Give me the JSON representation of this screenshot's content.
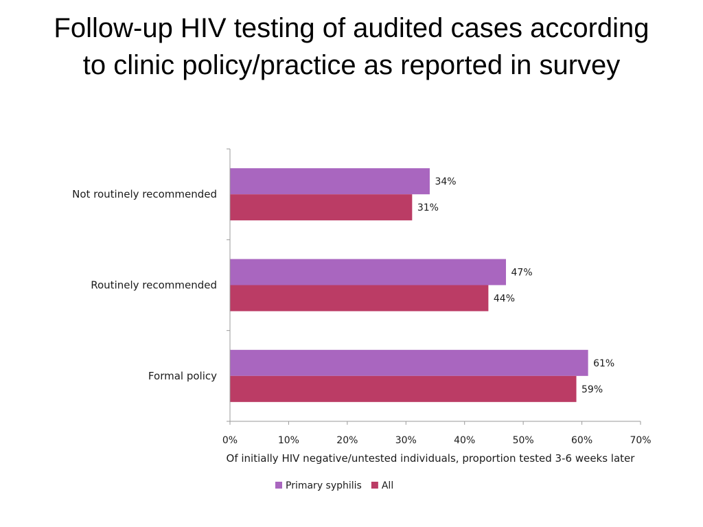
{
  "title": "Follow-up HIV testing of audited cases according\nto clinic policy/practice as reported in survey",
  "chart_data": {
    "type": "bar",
    "orientation": "horizontal",
    "categories": [
      "Not routinely recommended",
      "Routinely recommended",
      "Formal policy"
    ],
    "series": [
      {
        "name": "Primary syphilis",
        "color": "#a966bf",
        "values": [
          34,
          47,
          61
        ],
        "labels": [
          "34%",
          "47%",
          "61%"
        ]
      },
      {
        "name": "All",
        "color": "#bb3c65",
        "values": [
          31,
          44,
          59
        ],
        "labels": [
          "31%",
          "44%",
          "59%"
        ]
      }
    ],
    "xlabel": "Of initially HIV negative/untested individuals, proportion  tested 3-6 weeks later",
    "xlim": [
      0,
      70
    ],
    "xticks": [
      0,
      10,
      20,
      30,
      40,
      50,
      60,
      70
    ],
    "xtick_labels": [
      "0%",
      "10%",
      "20%",
      "30%",
      "40%",
      "50%",
      "60%",
      "70%"
    ],
    "legend_position": "bottom",
    "grid": false
  }
}
